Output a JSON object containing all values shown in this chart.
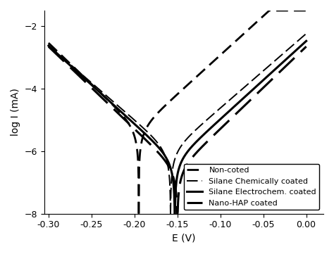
{
  "title": "",
  "xlabel": "E (V)",
  "ylabel": "log I (mA)",
  "xlim": [
    -0.305,
    0.02
  ],
  "ylim": [
    -8.0,
    -1.5
  ],
  "yticks": [
    -8,
    -6,
    -4,
    -2
  ],
  "xticks": [
    -0.3,
    -0.25,
    -0.2,
    -0.15,
    -0.1,
    -0.05,
    0.0
  ],
  "background_color": "#ffffff",
  "curves": [
    {
      "label": "Non-coted",
      "dashes": [
        6,
        3
      ],
      "linewidth": 2.0,
      "color": "#000000",
      "Ecorr": -0.195,
      "log_Icorr": -5.3,
      "ba": 0.04,
      "bc": 0.038
    },
    {
      "label": "Silane Chemically coated",
      "dashes": [
        8,
        3
      ],
      "linewidth": 1.4,
      "color": "#000000",
      "Ecorr": -0.158,
      "log_Icorr": -6.0,
      "ba": 0.042,
      "bc": 0.042
    },
    {
      "label": "Silane Electrochem. coated",
      "dashes": null,
      "linewidth": 2.2,
      "color": "#000000",
      "Ecorr": -0.153,
      "log_Icorr": -6.3,
      "ba": 0.04,
      "bc": 0.04
    },
    {
      "label": "Nano-HAP coated",
      "dashes": [
        10,
        4
      ],
      "linewidth": 2.2,
      "color": "#000000",
      "Ecorr": -0.15,
      "log_Icorr": -6.6,
      "ba": 0.038,
      "bc": 0.038
    }
  ],
  "Emin": -0.3,
  "Emax": 0.0,
  "legend_fontsize": 8,
  "axis_fontsize": 10
}
